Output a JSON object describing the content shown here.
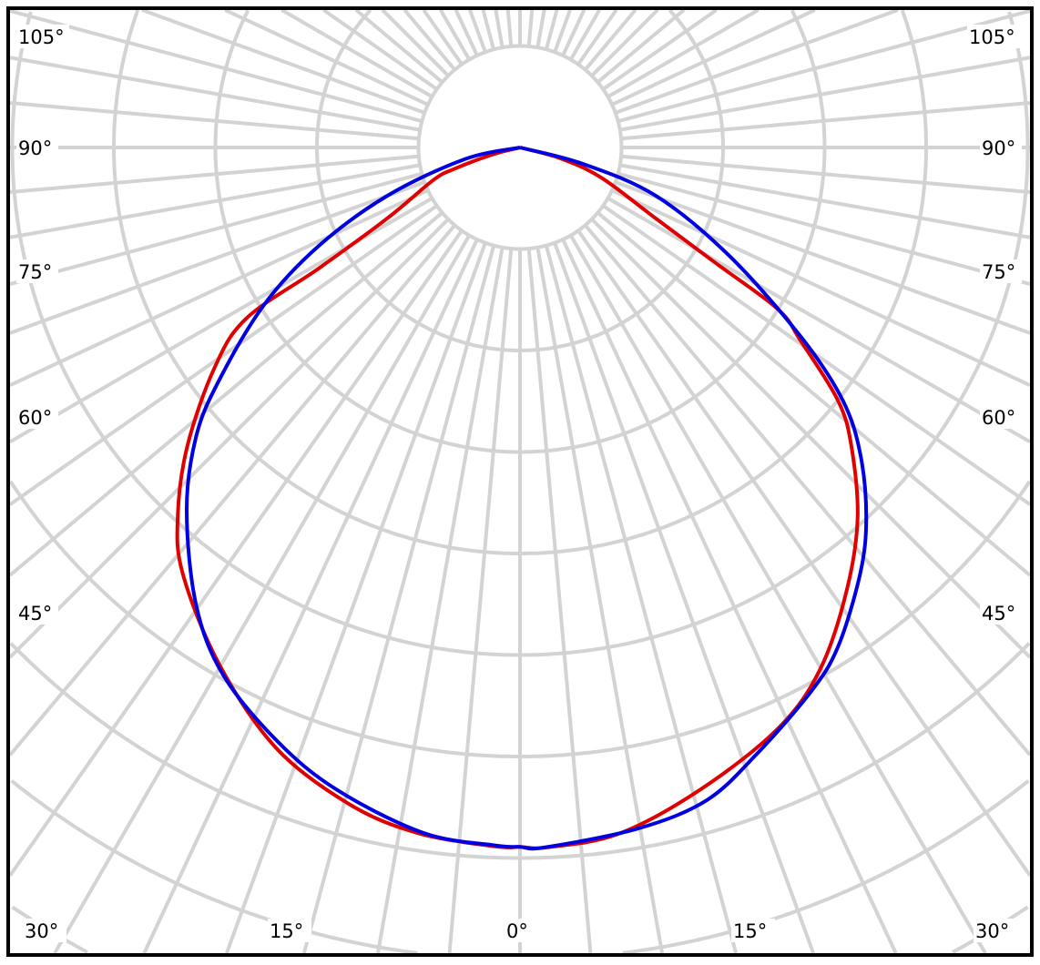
{
  "chart_data": {
    "type": "polar-line",
    "title": "",
    "angle_unit": "degrees",
    "angle_labels_left": [
      "105°",
      "90°",
      "75°",
      "60°",
      "45°"
    ],
    "angle_labels_right": [
      "105°",
      "90°",
      "75°",
      "60°",
      "45°"
    ],
    "angle_labels_bottom": [
      "30°",
      "15°",
      "0°",
      "15°",
      "30°"
    ],
    "radial_tick_labels": [],
    "radial_unit": "grid rings (no values printed)",
    "radial_range": [
      0,
      9
    ],
    "angular_grid_step": 5,
    "grid": true,
    "grid_color": "#d3d3d3",
    "series": [
      {
        "color": "#e00000",
        "points": [
          [
            -90,
            0
          ],
          [
            -75.5,
            0.29
          ],
          [
            -72,
            0.67
          ],
          [
            -69.4,
            0.91
          ],
          [
            -61.9,
            1.48
          ],
          [
            -59,
            2.31
          ],
          [
            -58,
            3.18
          ],
          [
            -54.1,
            3.72
          ],
          [
            -48.1,
            4.4
          ],
          [
            -43,
            4.94
          ],
          [
            -38.4,
            5.35
          ],
          [
            -30.2,
            5.89
          ],
          [
            -22,
            6.39
          ],
          [
            -14.4,
            6.69
          ],
          [
            -8.4,
            6.83
          ],
          [
            -2,
            6.89
          ],
          [
            0,
            6.89
          ],
          [
            2.2,
            6.9
          ],
          [
            8.2,
            6.83
          ],
          [
            15.7,
            6.57
          ],
          [
            24,
            6.26
          ],
          [
            29.9,
            5.93
          ],
          [
            36.3,
            5.43
          ],
          [
            42.3,
            4.94
          ],
          [
            48,
            4.39
          ],
          [
            51.5,
            4.0
          ],
          [
            55.4,
            3.36
          ],
          [
            57.9,
            3.0
          ],
          [
            59.4,
            2.25
          ],
          [
            62.4,
            1.51
          ],
          [
            69.7,
            0.85
          ],
          [
            75,
            0.4
          ],
          [
            90,
            0
          ]
        ]
      },
      {
        "color": "#0000e0",
        "points": [
          [
            -90,
            0
          ],
          [
            -78,
            0.56
          ],
          [
            -70,
            1.39
          ],
          [
            -63.9,
            2.21
          ],
          [
            -58.4,
            2.96
          ],
          [
            -52.1,
            3.77
          ],
          [
            -48.2,
            4.28
          ],
          [
            -42.6,
            4.85
          ],
          [
            -35.3,
            5.52
          ],
          [
            -29.4,
            5.96
          ],
          [
            -22.2,
            6.32
          ],
          [
            -15.9,
            6.58
          ],
          [
            -8,
            6.82
          ],
          [
            -2,
            6.88
          ],
          [
            0,
            6.89
          ],
          [
            2,
            6.9
          ],
          [
            9.8,
            6.81
          ],
          [
            15.9,
            6.69
          ],
          [
            21.2,
            6.42
          ],
          [
            28.1,
            6.08
          ],
          [
            32.5,
            5.83
          ],
          [
            38.6,
            5.37
          ],
          [
            43,
            5.0
          ],
          [
            47.9,
            4.52
          ],
          [
            51.9,
            4.04
          ],
          [
            56,
            3.34
          ],
          [
            62.7,
            2.31
          ],
          [
            70.4,
            1.42
          ],
          [
            75.4,
            0.64
          ],
          [
            90,
            0
          ]
        ]
      }
    ]
  }
}
